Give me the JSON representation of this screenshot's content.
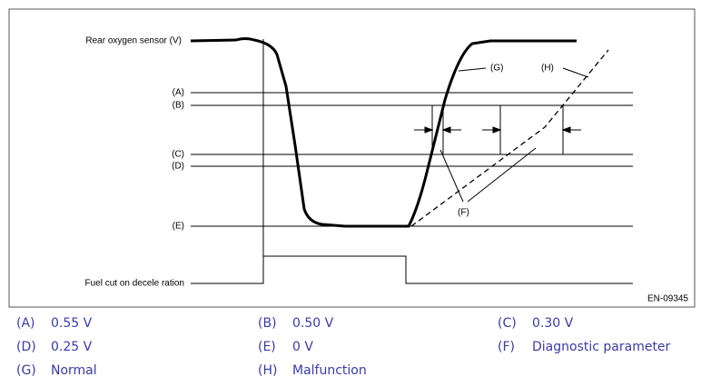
{
  "diagram": {
    "y_label": "Rear oxygen sensor (V)",
    "levels": [
      "(A)",
      "(B)",
      "(C)",
      "(D)",
      "(E)"
    ],
    "x_label": "Fuel cut on decele ration",
    "callouts": [
      "(G)",
      "(H)",
      "(F)"
    ],
    "code": "EN-09345"
  },
  "legend": [
    {
      "key": "(A)",
      "text": "0.55 V"
    },
    {
      "key": "(B)",
      "text": "0.50 V"
    },
    {
      "key": "(C)",
      "text": "0.30 V"
    },
    {
      "key": "(D)",
      "text": "0.25 V"
    },
    {
      "key": "(E)",
      "text": "0 V"
    },
    {
      "key": "(F)",
      "text": "Diagnostic parameter"
    },
    {
      "key": "(G)",
      "text": "Normal"
    },
    {
      "key": "(H)",
      "text": "Malfunction"
    }
  ]
}
